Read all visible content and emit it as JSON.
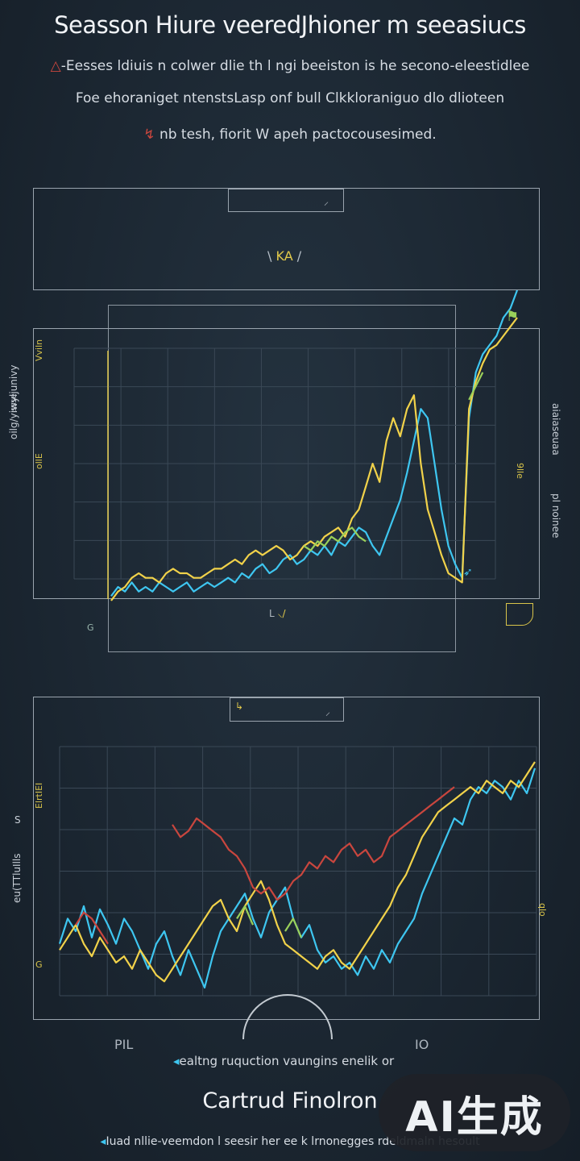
{
  "header": {
    "title": "Seasson Hiure veeredJhioner m seeasiucs",
    "lines": [
      "-Eesses ldiuis n colwer dlie th l ngi beeiston is he secono-eleestidlee",
      "Foe ehoraniget ntenstsLasp onf bull Clkkloraniguo dlo dlioteen",
      "nb tesh, fiorit W apeh pactocousesimed."
    ]
  },
  "chart_top": {
    "legend_box_label": "",
    "emblem_label": "KA",
    "y_label": "oilg/yiwyljunivy",
    "y_label_left_top": "ssse",
    "right_label_a": "aiaiaseuaa",
    "right_label_b": "pl noinee",
    "tick_labels": [
      "Vviln",
      "ollE",
      "9lle",
      "G"
    ],
    "x_label": "L",
    "colors": {
      "blue": "#3ec6f0",
      "yellow": "#f1d24a",
      "red": "#c9463e",
      "green": "#9ad05a",
      "axis": "#b7c0c9"
    }
  },
  "chart_bottom": {
    "legend_box_label": "",
    "y_label": "eu(TTluIlls",
    "y_label_top": "S",
    "tick_labels": [
      "ElrtIEI",
      "G",
      "qlo"
    ],
    "x_labels": [
      "PIL",
      "IO"
    ],
    "caption": "ealtng ruquction vaungins enelik or"
  },
  "chart_data": [
    {
      "type": "line",
      "title": "",
      "xlabel": "",
      "ylabel": "",
      "x": [
        0,
        1,
        2,
        3,
        4,
        5,
        6,
        7,
        8,
        9,
        10,
        11,
        12,
        13,
        14,
        15,
        16,
        17,
        18,
        19,
        20,
        21,
        22,
        23,
        24,
        25,
        26,
        27,
        28,
        29,
        30,
        31,
        32,
        33,
        34,
        35,
        36,
        37,
        38,
        39,
        40,
        41,
        42,
        43,
        44,
        45,
        46,
        47,
        48,
        49,
        50,
        51,
        52,
        53,
        54,
        55,
        56,
        57,
        58,
        59
      ],
      "series": [
        {
          "name": "",
          "color": "#3ec6f0",
          "values": [
            1,
            3,
            2,
            4,
            2,
            3,
            2,
            4,
            3,
            2,
            3,
            4,
            2,
            3,
            4,
            3,
            4,
            5,
            4,
            6,
            5,
            7,
            8,
            6,
            7,
            9,
            10,
            8,
            9,
            11,
            10,
            12,
            10,
            13,
            12,
            14,
            16,
            15,
            12,
            10,
            14,
            18,
            22,
            28,
            35,
            42,
            40,
            30,
            20,
            12,
            8,
            5,
            40,
            50,
            54,
            56,
            58,
            62,
            64,
            68
          ]
        },
        {
          "name": "",
          "color": "#f1d24a",
          "values": [
            0,
            2,
            3,
            5,
            6,
            5,
            5,
            4,
            6,
            7,
            6,
            6,
            5,
            5,
            6,
            7,
            7,
            8,
            9,
            8,
            10,
            11,
            10,
            11,
            12,
            11,
            9,
            10,
            12,
            13,
            12,
            14,
            15,
            16,
            14,
            18,
            20,
            25,
            30,
            26,
            35,
            40,
            36,
            42,
            45,
            30,
            20,
            15,
            10,
            6,
            5,
            4,
            42,
            48,
            52,
            55,
            56,
            58,
            60,
            62
          ]
        },
        {
          "name": "",
          "color": "#9ad05a",
          "values": [
            null,
            null,
            null,
            null,
            null,
            null,
            null,
            null,
            null,
            null,
            null,
            null,
            null,
            null,
            null,
            null,
            null,
            null,
            null,
            null,
            null,
            null,
            null,
            null,
            null,
            null,
            null,
            null,
            12,
            11,
            13,
            12,
            14,
            13,
            15,
            16,
            14,
            13,
            null,
            null,
            null,
            null,
            null,
            null,
            null,
            null,
            null,
            null,
            null,
            null,
            null,
            null,
            44,
            47,
            50,
            null,
            null,
            null,
            null,
            null
          ]
        }
      ]
    },
    {
      "type": "line",
      "title": "",
      "xlabel": "",
      "ylabel": "",
      "x": [
        0,
        1,
        2,
        3,
        4,
        5,
        6,
        7,
        8,
        9,
        10,
        11,
        12,
        13,
        14,
        15,
        16,
        17,
        18,
        19,
        20,
        21,
        22,
        23,
        24,
        25,
        26,
        27,
        28,
        29,
        30,
        31,
        32,
        33,
        34,
        35,
        36,
        37,
        38,
        39,
        40,
        41,
        42,
        43,
        44,
        45,
        46,
        47,
        48,
        49,
        50,
        51,
        52,
        53,
        54,
        55,
        56,
        57,
        58,
        59
      ],
      "series": [
        {
          "name": "",
          "color": "#3ec6f0",
          "values": [
            22,
            30,
            26,
            34,
            24,
            33,
            28,
            22,
            30,
            26,
            20,
            14,
            22,
            26,
            18,
            12,
            20,
            14,
            8,
            18,
            26,
            30,
            34,
            38,
            30,
            24,
            32,
            36,
            40,
            30,
            24,
            28,
            20,
            16,
            18,
            14,
            16,
            12,
            18,
            14,
            20,
            16,
            22,
            26,
            30,
            38,
            44,
            50,
            56,
            62,
            60,
            68,
            72,
            70,
            74,
            72,
            68,
            74,
            70,
            78
          ]
        },
        {
          "name": "",
          "color": "#f1d24a",
          "values": [
            20,
            24,
            28,
            22,
            18,
            24,
            20,
            16,
            18,
            14,
            20,
            16,
            12,
            10,
            14,
            18,
            22,
            26,
            30,
            34,
            36,
            30,
            26,
            34,
            38,
            42,
            36,
            28,
            22,
            20,
            18,
            16,
            14,
            18,
            20,
            16,
            14,
            18,
            22,
            26,
            30,
            34,
            40,
            44,
            50,
            56,
            60,
            64,
            66,
            68,
            70,
            72,
            70,
            74,
            72,
            70,
            74,
            72,
            76,
            80
          ]
        },
        {
          "name": "",
          "color": "#c9463e",
          "values": [
            null,
            null,
            28,
            32,
            30,
            26,
            22,
            null,
            null,
            null,
            null,
            null,
            null,
            null,
            60,
            56,
            58,
            62,
            60,
            58,
            56,
            52,
            50,
            46,
            40,
            38,
            40,
            36,
            38,
            42,
            44,
            48,
            46,
            50,
            48,
            52,
            54,
            50,
            52,
            48,
            50,
            56,
            58,
            60,
            62,
            64,
            66,
            68,
            70,
            72,
            null,
            null,
            null,
            null,
            null,
            null,
            null,
            null,
            null,
            null
          ]
        },
        {
          "name": "",
          "color": "#9ad05a",
          "values": [
            null,
            null,
            null,
            null,
            null,
            null,
            null,
            null,
            null,
            null,
            null,
            null,
            null,
            null,
            null,
            null,
            null,
            null,
            null,
            null,
            null,
            null,
            30,
            34,
            28,
            null,
            null,
            null,
            26,
            30,
            24,
            null,
            null,
            null,
            null,
            null,
            null,
            null,
            null,
            null,
            null,
            null,
            null,
            null,
            null,
            null,
            null,
            null,
            null,
            null,
            null,
            null,
            null,
            null,
            null,
            null,
            null,
            null,
            null,
            null
          ]
        }
      ]
    }
  ],
  "footer": {
    "title": "Cartrud Finolron",
    "caption": "Iuad nllie-veemdon l seesir her ee k lrnonegges rdeldmaln hesoult",
    "watermark": "AI生成"
  }
}
